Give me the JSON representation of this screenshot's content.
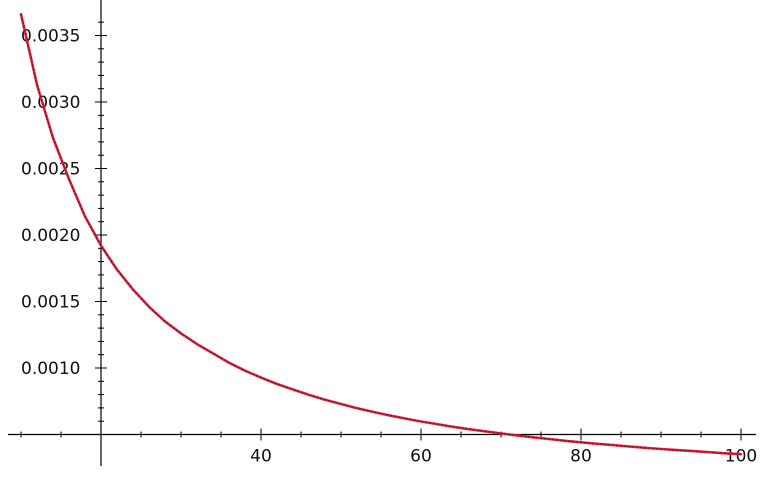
{
  "chart_data": {
    "type": "line",
    "title": "",
    "xlabel": "",
    "ylabel": "",
    "xlim": [
      8,
      102
    ],
    "ylim": [
      0.00052,
      0.00367
    ],
    "grid": false,
    "legend": "none",
    "x_axis_crossing_y": 0.0005,
    "y_axis_crossing_x": 20,
    "x_ticks": [
      {
        "value": 40,
        "label": "40"
      },
      {
        "value": 60,
        "label": "60"
      },
      {
        "value": 80,
        "label": "80"
      },
      {
        "value": 100,
        "label": "100"
      }
    ],
    "y_ticks": [
      {
        "value": 0.001,
        "label": "0.0010"
      },
      {
        "value": 0.0015,
        "label": "0.0015"
      },
      {
        "value": 0.002,
        "label": "0.0020"
      },
      {
        "value": 0.0025,
        "label": "0.0025"
      },
      {
        "value": 0.003,
        "label": "0.0030"
      },
      {
        "value": 0.0035,
        "label": "0.0035"
      }
    ],
    "series": [
      {
        "color": "#d7263d",
        "x": [
          10,
          12,
          14,
          16,
          18,
          20,
          22,
          24,
          26,
          28,
          30,
          32,
          34,
          36,
          38,
          40,
          42,
          44,
          46,
          48,
          50,
          52,
          54,
          56,
          58,
          60,
          62,
          64,
          66,
          68,
          70,
          72,
          74,
          76,
          78,
          80,
          82,
          84,
          86,
          88,
          90,
          92,
          94,
          96,
          98,
          100
        ],
        "y": [
          0.00366,
          0.00313,
          0.00273,
          0.00242,
          0.00214,
          0.00192,
          0.00174,
          0.00159,
          0.00146,
          0.00135,
          0.00126,
          0.00118,
          0.00111,
          0.00104,
          0.00098,
          0.000928,
          0.00088,
          0.000838,
          0.000798,
          0.000762,
          0.000729,
          0.000698,
          0.00067,
          0.000644,
          0.00062,
          0.000598,
          0.000578,
          0.000558,
          0.00054,
          0.000524,
          0.000508,
          0.000493,
          0.000479,
          0.000466,
          0.000453,
          0.000441,
          0.00043,
          0.00042,
          0.00041,
          0.0004,
          0.000391,
          0.000383,
          0.000375,
          0.000367,
          0.000359,
          0.000352
        ]
      }
    ]
  }
}
